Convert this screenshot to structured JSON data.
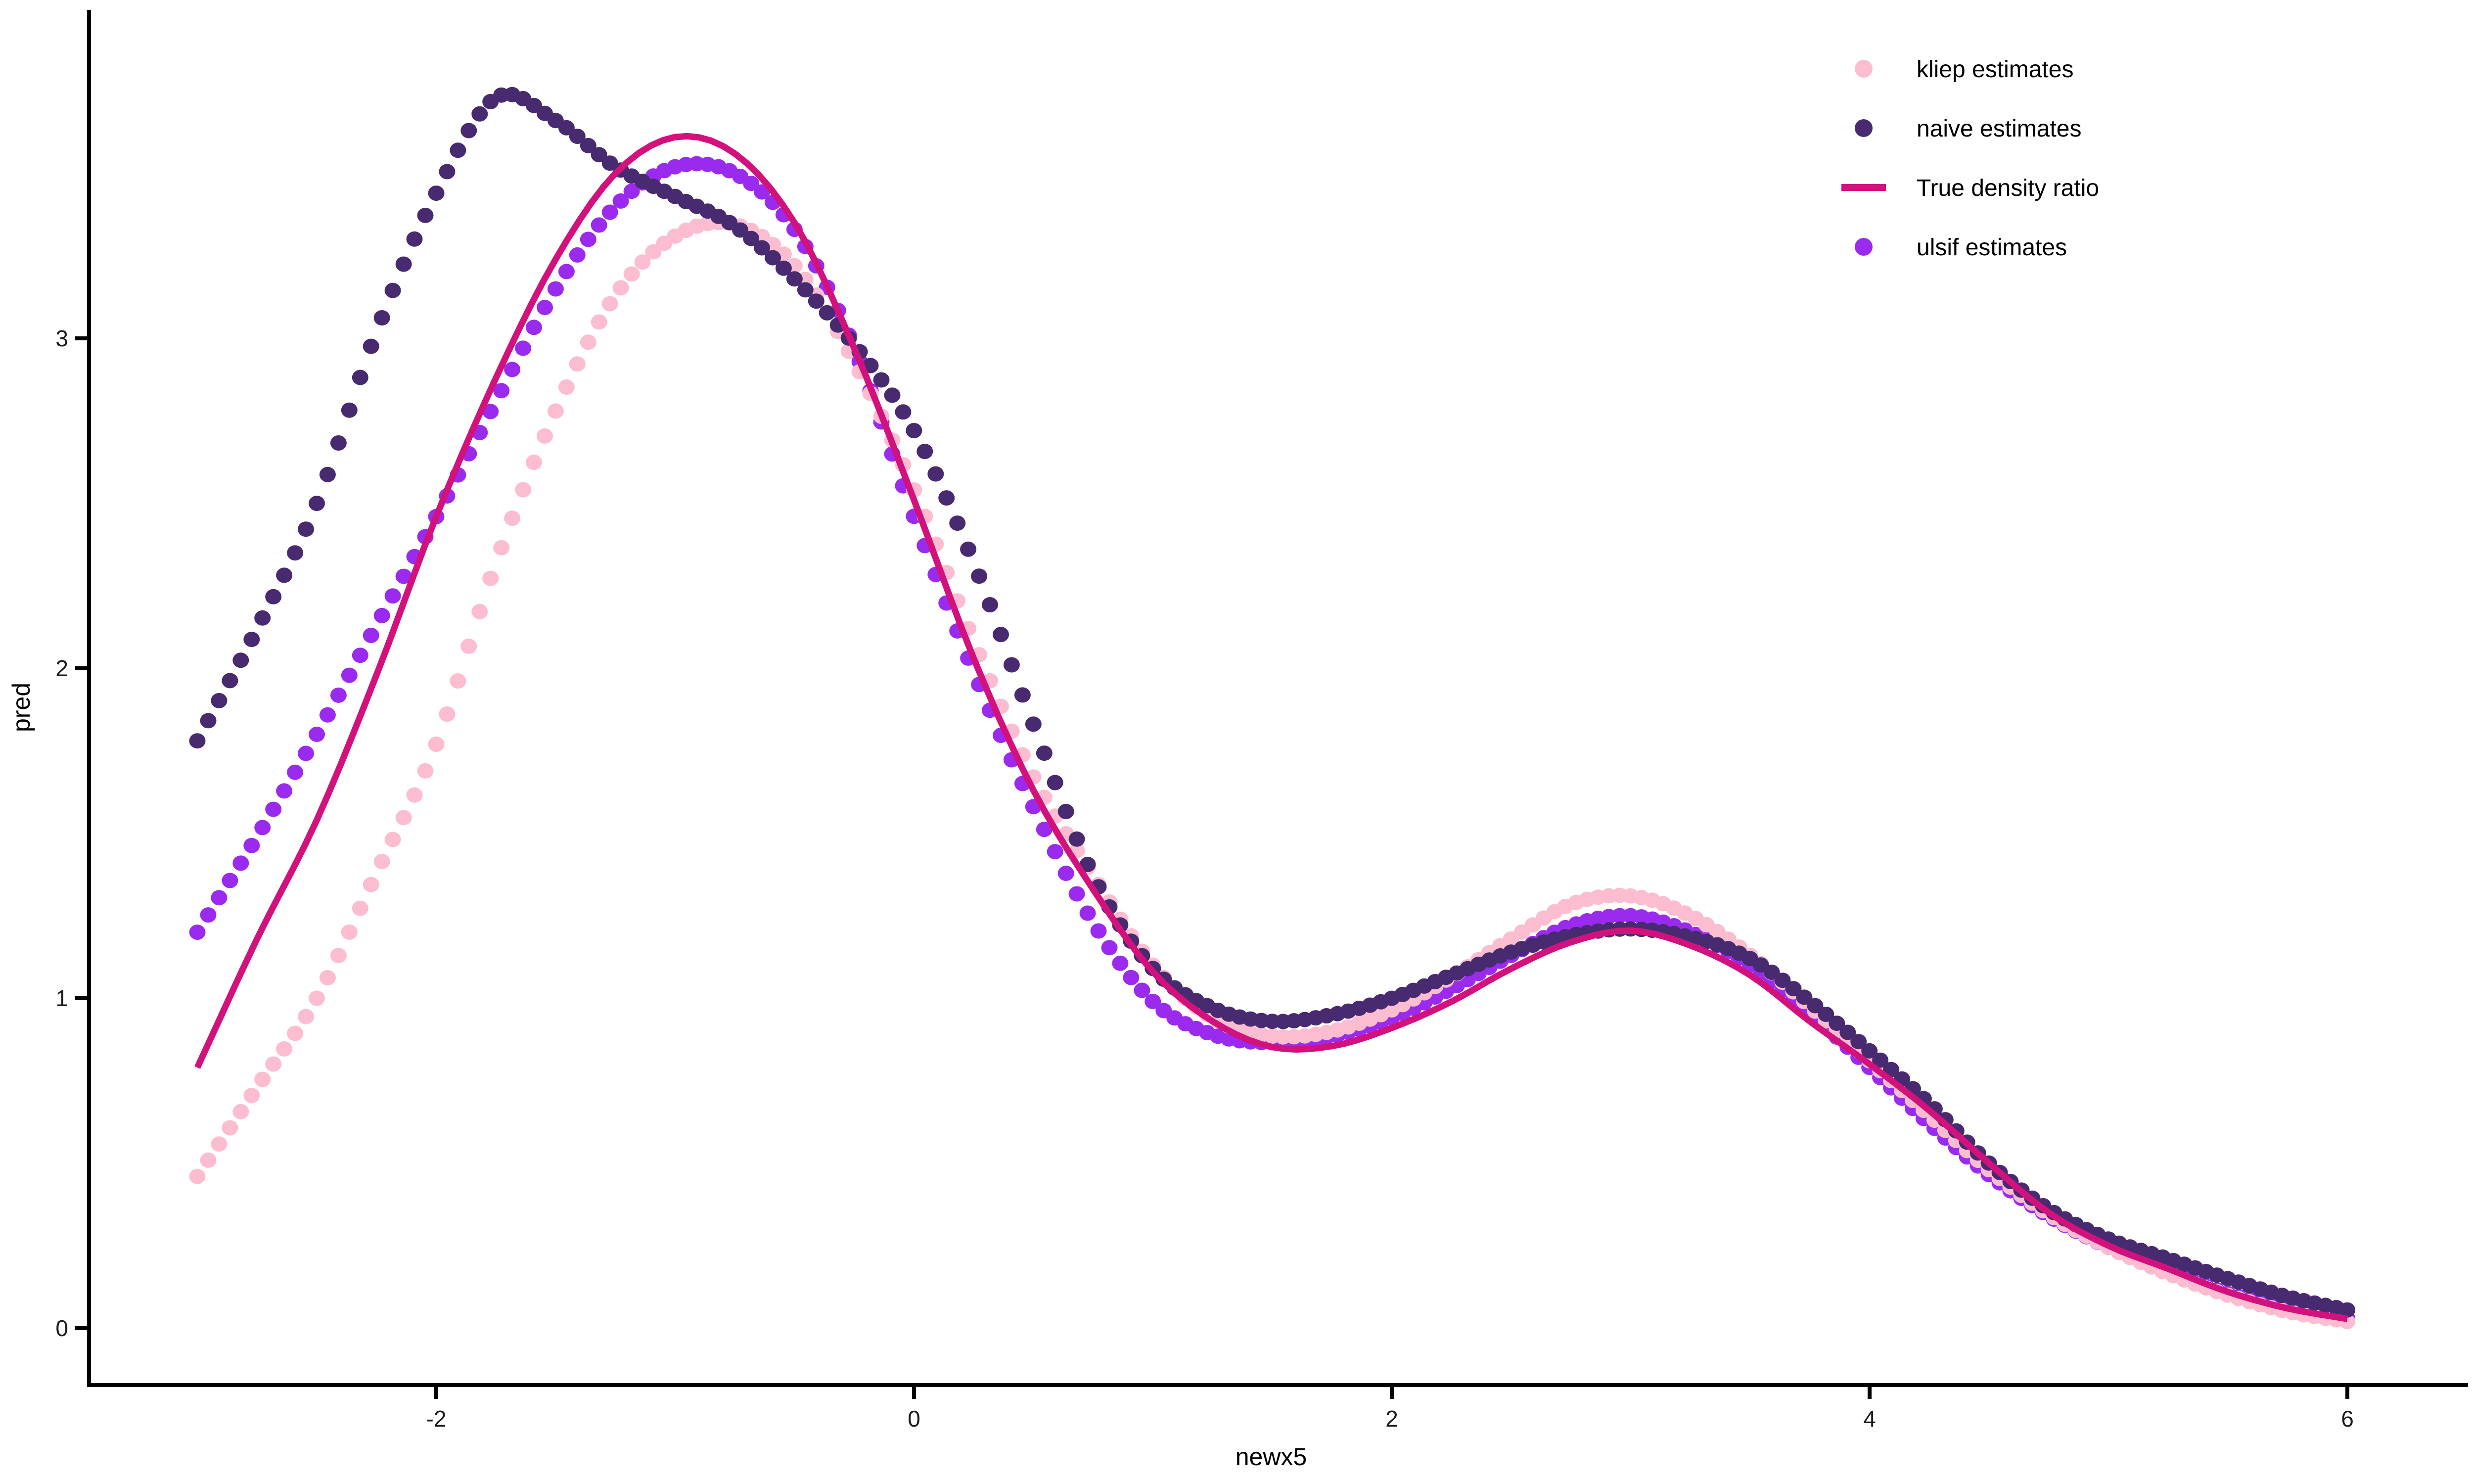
{
  "chart_data": {
    "type": "scatter",
    "subtype": "density-ratio-curves (3 dotted estimate series + 1 true line)",
    "title": "",
    "xlabel": "newx5",
    "ylabel": "pred",
    "xlim": [
      -3,
      6
    ],
    "ylim": [
      0,
      3.9
    ],
    "grid": "off",
    "background": "#ffffff",
    "axis_color": "#000000",
    "x_ticks": [
      {
        "value": -2,
        "label": "-2"
      },
      {
        "value": 0,
        "label": "0"
      },
      {
        "value": 2,
        "label": "2"
      },
      {
        "value": 4,
        "label": "4"
      },
      {
        "value": 6,
        "label": "6"
      }
    ],
    "y_ticks": [
      {
        "value": 0,
        "label": "0"
      },
      {
        "value": 1,
        "label": "1"
      },
      {
        "value": 2,
        "label": "2"
      },
      {
        "value": 3,
        "label": "3"
      }
    ],
    "anchor_x": [
      -3.0,
      -2.75,
      -2.5,
      -2.25,
      -2.0,
      -1.75,
      -1.5,
      -1.25,
      -1.0,
      -0.75,
      -0.5,
      -0.25,
      0.0,
      0.25,
      0.5,
      0.75,
      1.0,
      1.25,
      1.5,
      1.75,
      2.0,
      2.25,
      2.5,
      2.75,
      3.0,
      3.25,
      3.5,
      3.75,
      4.0,
      4.25,
      4.5,
      4.75,
      5.0,
      5.25,
      5.5,
      5.75,
      6.0
    ],
    "series": [
      {
        "name": "ulsif estimates",
        "kind": "scatter",
        "color": "#9A2BEE",
        "marker_step": 0.04545,
        "values": [
          1.2,
          1.49,
          1.8,
          2.13,
          2.46,
          2.81,
          3.15,
          3.4,
          3.52,
          3.5,
          3.33,
          2.97,
          2.46,
          1.99,
          1.58,
          1.23,
          0.99,
          0.89,
          0.865,
          0.885,
          0.94,
          1.03,
          1.13,
          1.22,
          1.25,
          1.2,
          1.1,
          0.955,
          0.79,
          0.62,
          0.465,
          0.34,
          0.245,
          0.17,
          0.105,
          0.06,
          0.03
        ]
      },
      {
        "name": "kliep estimates",
        "kind": "scatter",
        "color": "#FBBDCF",
        "marker_step": 0.04545,
        "values": [
          0.46,
          0.73,
          1.0,
          1.38,
          1.77,
          2.32,
          2.78,
          3.13,
          3.31,
          3.345,
          3.22,
          2.93,
          2.54,
          2.08,
          1.67,
          1.37,
          1.1,
          0.94,
          0.885,
          0.9,
          0.965,
          1.065,
          1.18,
          1.285,
          1.31,
          1.25,
          1.13,
          0.975,
          0.81,
          0.645,
          0.48,
          0.345,
          0.245,
          0.165,
          0.1,
          0.05,
          0.02
        ]
      },
      {
        "name": "naive estimates",
        "kind": "scatter",
        "color": "#472A6F",
        "marker_step": 0.04545,
        "values": [
          1.78,
          2.12,
          2.5,
          3.02,
          3.44,
          3.73,
          3.66,
          3.52,
          3.43,
          3.34,
          3.18,
          2.98,
          2.72,
          2.32,
          1.83,
          1.37,
          1.09,
          0.97,
          0.93,
          0.95,
          1.0,
          1.07,
          1.14,
          1.19,
          1.21,
          1.185,
          1.12,
          0.99,
          0.84,
          0.68,
          0.5,
          0.36,
          0.27,
          0.21,
          0.15,
          0.095,
          0.055
        ]
      },
      {
        "name": "True density ratio",
        "kind": "line",
        "color": "#D3117D",
        "line_width": 13,
        "values": [
          0.79,
          1.18,
          1.54,
          1.98,
          2.46,
          2.88,
          3.24,
          3.5,
          3.61,
          3.56,
          3.35,
          2.97,
          2.51,
          2.03,
          1.63,
          1.33,
          1.08,
          0.93,
          0.852,
          0.855,
          0.91,
          0.99,
          1.09,
          1.17,
          1.205,
          1.16,
          1.07,
          0.93,
          0.8,
          0.66,
          0.5,
          0.35,
          0.25,
          0.18,
          0.11,
          0.06,
          0.028
        ]
      }
    ],
    "legend": {
      "position": "top-right",
      "items": [
        {
          "label": "kliep estimates",
          "marker": "dot",
          "color": "#FBBDCF"
        },
        {
          "label": "naive estimates",
          "marker": "dot",
          "color": "#472A6F"
        },
        {
          "label": "True density ratio",
          "marker": "line",
          "color": "#D3117D"
        },
        {
          "label": "ulsif estimates",
          "marker": "dot",
          "color": "#9A2BEE"
        }
      ]
    }
  }
}
